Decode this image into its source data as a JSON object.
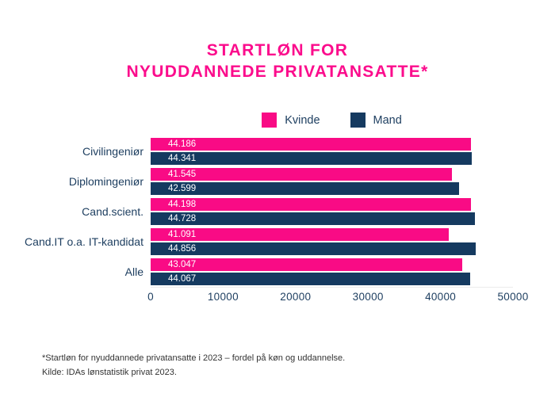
{
  "title": {
    "line1": "STARTLØN FOR",
    "line2": "NYUDDANNEDE PRIVATANSATTE*"
  },
  "colors": {
    "accent_pink": "#FB0C8C",
    "bar_pink": "#F90B85",
    "bar_navy": "#153A60",
    "text_navy": "#1C3D5F",
    "footnote_text": "#333333"
  },
  "legend": {
    "position": "top",
    "items": [
      {
        "label": "Kvinde",
        "color": "#F90B85"
      },
      {
        "label": "Mand",
        "color": "#153A60"
      }
    ]
  },
  "chart_data": {
    "type": "bar",
    "orientation": "horizontal",
    "title": "STARTLØN FOR NYUDDANNEDE PRIVATANSATTE*",
    "categories": [
      "Civilingeniør",
      "Diplomingeniør",
      "Cand.scient.",
      "Cand.IT o.a. IT-kandidat",
      "Alle"
    ],
    "series": [
      {
        "name": "Kvinde",
        "color": "#F90B85",
        "values": [
          44186,
          41545,
          44198,
          41091,
          43047
        ],
        "labels": [
          "44.186",
          "41.545",
          "44.198",
          "41.091",
          "43.047"
        ]
      },
      {
        "name": "Mand",
        "color": "#153A60",
        "values": [
          44341,
          42599,
          44728,
          44856,
          44067
        ],
        "labels": [
          "44.341",
          "42.599",
          "44.728",
          "44.856",
          "44.067"
        ]
      }
    ],
    "xlim": [
      0,
      50000
    ],
    "xticks": [
      "0",
      "10000",
      "20000",
      "30000",
      "40000",
      "50000"
    ],
    "grid": false,
    "value_labels": "inside-left"
  },
  "footnote": {
    "line1": "*Startløn for nyuddannede privatansatte i 2023 – fordel på køn og uddannelse.",
    "line2": "Kilde: IDAs lønstatistik privat 2023."
  }
}
